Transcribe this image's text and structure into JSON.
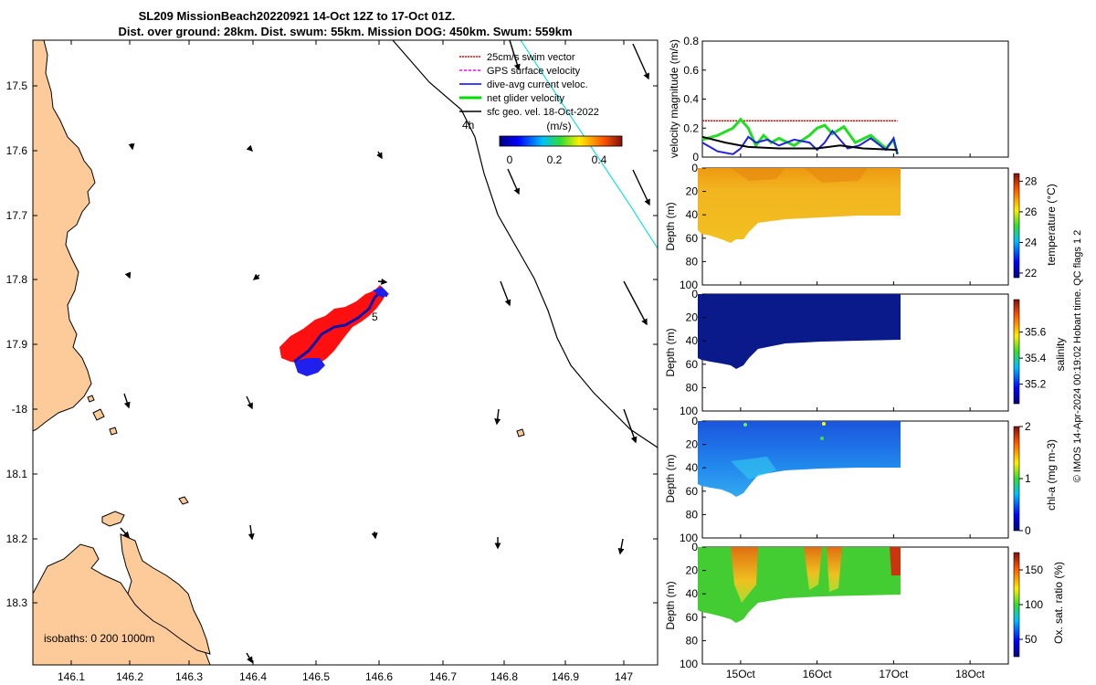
{
  "title": {
    "line1": "SL209 MissionBeach20220921 14-Oct 12Z to 17-Oct 01Z.",
    "line2": "Dist. over ground: 28km. Dist. swum: 55km. Mission DOG: 450km. Swum: 559km"
  },
  "map": {
    "lat_ticks": [
      "17.5",
      "17.6",
      "17.7",
      "17.8",
      "17.9",
      "-18",
      "18.1",
      "18.2",
      "18.3"
    ],
    "lon_ticks": [
      "146.1",
      "146.2",
      "146.3",
      "146.4",
      "146.5",
      "146.6",
      "146.7",
      "146.8",
      "146.9",
      "147"
    ],
    "legend": [
      {
        "label": "25cm/s swim vector",
        "color": "#ff0000"
      },
      {
        "label": "GPS surface velocity",
        "color": "#ff00ff"
      },
      {
        "label": "dive-avg current veloc.",
        "color": "#0000ff"
      },
      {
        "label": "net glider velocity",
        "color": "#00dd00"
      },
      {
        "label": "sfc geo. vel. 18-Oct-2022",
        "color": "#000000"
      }
    ],
    "colorbar_title": "(m/s)",
    "colorbar_ticks": [
      "0",
      "0.2",
      "0.4"
    ],
    "isobaths_label": "isobaths: 0   200  1000m",
    "marker_4h": "4h",
    "marker_5": "5"
  },
  "chart_data": [
    {
      "type": "line",
      "title": "",
      "ylabel": "velocity magnitude (m/s)",
      "ylim": [
        0,
        0.8
      ],
      "yticks": [
        "0",
        "0.2",
        "0.4",
        "0.6",
        "0.8"
      ],
      "series": [
        {
          "name": "25cm/s swim vector",
          "color": "#ff0000",
          "x": [
            14.5,
            17.05
          ],
          "values": [
            0.25,
            0.25
          ]
        },
        {
          "name": "net glider velocity",
          "color": "#22dd22",
          "x": [
            14.5,
            14.7,
            14.9,
            15.0,
            15.1,
            15.2,
            15.3,
            15.4,
            15.5,
            15.7,
            15.9,
            16.0,
            16.1,
            16.2,
            16.35,
            16.5,
            16.7,
            16.9,
            17.0,
            17.05
          ],
          "values": [
            0.12,
            0.15,
            0.2,
            0.26,
            0.2,
            0.08,
            0.15,
            0.1,
            0.13,
            0.08,
            0.15,
            0.2,
            0.22,
            0.16,
            0.21,
            0.1,
            0.15,
            0.06,
            0.12,
            0.02
          ]
        },
        {
          "name": "dive-avg current veloc.",
          "color": "#2222dd",
          "x": [
            14.5,
            14.7,
            14.9,
            15.0,
            15.1,
            15.2,
            15.35,
            15.5,
            15.7,
            15.9,
            16.0,
            16.1,
            16.2,
            16.4,
            16.55,
            16.7,
            16.9,
            17.0,
            17.05
          ],
          "values": [
            0.1,
            0.04,
            0.02,
            0.06,
            0.14,
            0.1,
            0.12,
            0.08,
            0.12,
            0.1,
            0.05,
            0.1,
            0.18,
            0.06,
            0.08,
            0.13,
            0.05,
            0.13,
            0.02
          ]
        },
        {
          "name": "sfc geo. vel.",
          "color": "#000000",
          "x": [
            14.5,
            14.8,
            15.1,
            15.5,
            16.0,
            16.3,
            16.6,
            17.05
          ],
          "values": [
            0.14,
            0.1,
            0.07,
            0.06,
            0.06,
            0.08,
            0.06,
            0.05
          ]
        }
      ]
    },
    {
      "type": "heatmap",
      "ylabel": "Depth (m)",
      "yticks": [
        "0",
        "20",
        "40",
        "60",
        "80",
        "100"
      ],
      "colorbar_label": "temperature (°C)",
      "colorbar_ticks": [
        "22",
        "24",
        "26",
        "28"
      ],
      "colormap": "temperature"
    },
    {
      "type": "heatmap",
      "ylabel": "Depth (m)",
      "yticks": [
        "0",
        "20",
        "40",
        "60",
        "80",
        "100"
      ],
      "colorbar_label": "salinity",
      "colorbar_ticks": [
        "35.2",
        "35.4",
        "35.6"
      ],
      "colormap": "salinity"
    },
    {
      "type": "heatmap",
      "ylabel": "Depth (m)",
      "yticks": [
        "0",
        "20",
        "40",
        "60",
        "80",
        "100"
      ],
      "colorbar_label": "chl-a (mg m-3)",
      "colorbar_ticks": [
        "0",
        "1",
        "2"
      ],
      "colormap": "chl"
    },
    {
      "type": "heatmap",
      "ylabel": "Depth (m)",
      "yticks": [
        "0",
        "20",
        "40",
        "60",
        "80",
        "100"
      ],
      "colorbar_label": "Ox. sat. ratio (%)",
      "colorbar_ticks": [
        "50",
        "100",
        "150"
      ],
      "colormap": "oxygen",
      "xticks": [
        "15Oct",
        "16Oct",
        "17Oct",
        "18Oct"
      ]
    }
  ],
  "footer": "© IMOS 14-Apr-2024 00:19:02 Hobart time. QC flags 1  2"
}
